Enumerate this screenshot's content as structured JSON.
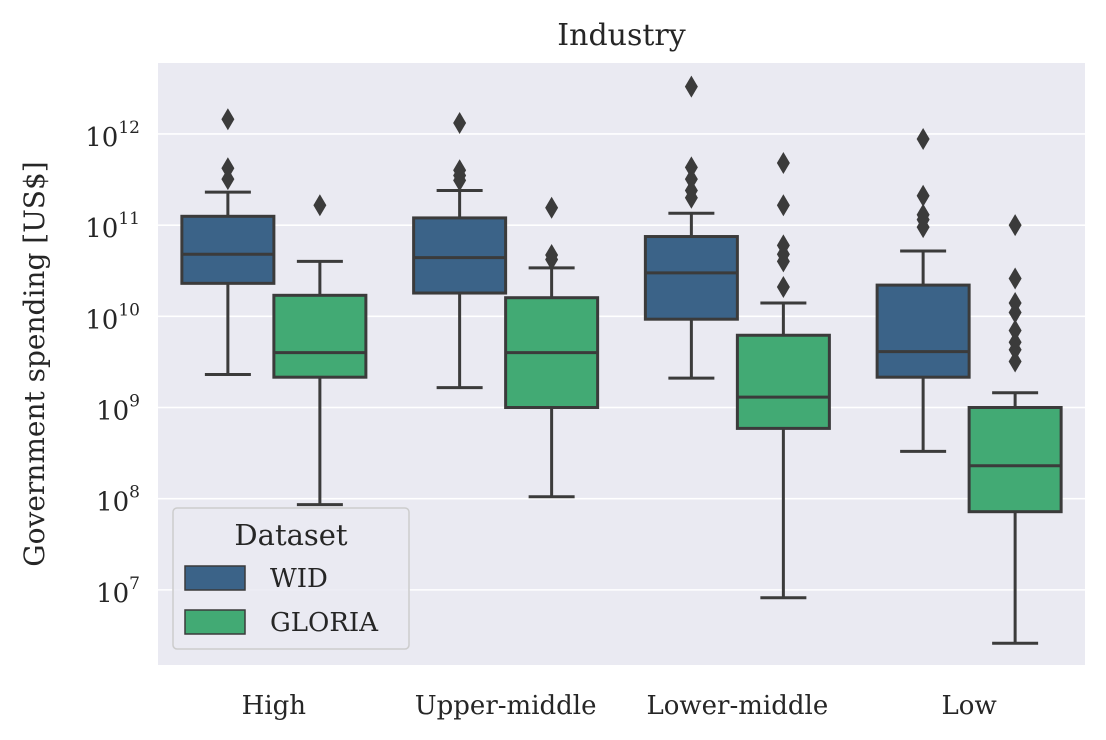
{
  "chart_data": {
    "type": "box",
    "title": "Industry",
    "xlabel": "",
    "ylabel": "Government spending [US$]",
    "yscale": "log",
    "ylim": [
      1500000,
      6000000000000
    ],
    "yticks": [
      {
        "value": 10000000,
        "base": "10",
        "exp": "7"
      },
      {
        "value": 100000000,
        "base": "10",
        "exp": "8"
      },
      {
        "value": 1000000000,
        "base": "10",
        "exp": "9"
      },
      {
        "value": 10000000000,
        "base": "10",
        "exp": "10"
      },
      {
        "value": 100000000000,
        "base": "10",
        "exp": "11"
      },
      {
        "value": 1000000000000,
        "base": "10",
        "exp": "12"
      }
    ],
    "categories": [
      "High",
      "Upper-middle",
      "Lower-middle",
      "Low"
    ],
    "grid": true,
    "legend": {
      "title": "Dataset",
      "placement": "lower-left"
    },
    "colors": {
      "background": "#eaeaf2",
      "grid": "#ffffff",
      "edge": "#3b3b3b"
    },
    "series": [
      {
        "name": "WID",
        "color": "#3b6388",
        "boxes": [
          {
            "whislo": 2300000000,
            "q1": 23000000000,
            "med": 48000000000,
            "q3": 125000000000,
            "whishi": 230000000000,
            "fliers": [
              320000000000,
              420000000000,
              1450000000000
            ]
          },
          {
            "whislo": 1650000000,
            "q1": 18000000000,
            "med": 44000000000,
            "q3": 120000000000,
            "whishi": 240000000000,
            "fliers": [
              310000000000,
              350000000000,
              400000000000,
              1320000000000
            ]
          },
          {
            "whislo": 2100000000,
            "q1": 9300000000,
            "med": 30000000000,
            "q3": 75000000000,
            "whishi": 135000000000,
            "fliers": [
              200000000000,
              240000000000,
              320000000000,
              430000000000,
              3300000000000
            ]
          },
          {
            "whislo": 330000000,
            "q1": 2150000000,
            "med": 4100000000,
            "q3": 22000000000,
            "whishi": 52000000000,
            "fliers": [
              95000000000,
              115000000000,
              130000000000,
              210000000000,
              880000000000
            ]
          }
        ]
      },
      {
        "name": "GLORIA",
        "color": "#42aa74",
        "boxes": [
          {
            "whislo": 86000000,
            "q1": 2150000000,
            "med": 4000000000,
            "q3": 17000000000,
            "whishi": 40000000000,
            "fliers": [
              165000000000
            ]
          },
          {
            "whislo": 105000000,
            "q1": 1000000000,
            "med": 4000000000,
            "q3": 16000000000,
            "whishi": 34000000000,
            "fliers": [
              42000000000,
              47000000000,
              155000000000
            ]
          },
          {
            "whislo": 8200000,
            "q1": 590000000,
            "med": 1300000000,
            "q3": 6200000000,
            "whishi": 14000000000,
            "fliers": [
              21000000000,
              40000000000,
              48000000000,
              60000000000,
              165000000000,
              480000000000
            ]
          },
          {
            "whislo": 2600000,
            "q1": 72000000,
            "med": 230000000,
            "q3": 1000000000,
            "whishi": 1450000000,
            "fliers": [
              3200000000,
              4300000000,
              5200000000,
              7000000000,
              11000000000,
              14000000000,
              26000000000,
              100000000000
            ]
          }
        ]
      }
    ]
  }
}
